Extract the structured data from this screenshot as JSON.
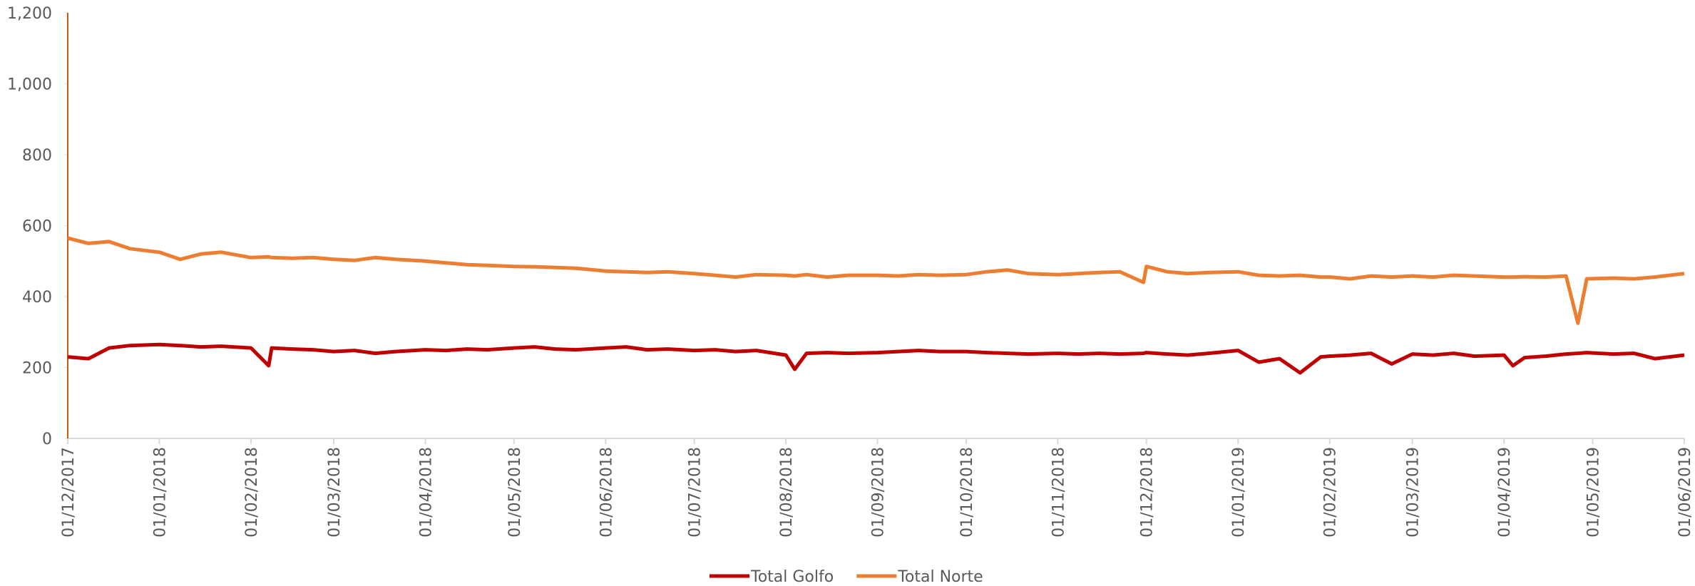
{
  "chart_data": {
    "type": "line",
    "x": [
      "01/12/2017",
      "08/12/2017",
      "15/12/2017",
      "22/12/2017",
      "01/01/2018",
      "08/01/2018",
      "15/01/2018",
      "22/01/2018",
      "01/02/2018",
      "07/02/2018",
      "08/02/2018",
      "15/02/2018",
      "22/02/2018",
      "01/03/2018",
      "08/03/2018",
      "15/03/2018",
      "22/03/2018",
      "01/04/2018",
      "08/04/2018",
      "15/04/2018",
      "22/04/2018",
      "01/05/2018",
      "08/05/2018",
      "15/05/2018",
      "22/05/2018",
      "01/06/2018",
      "08/06/2018",
      "15/06/2018",
      "22/06/2018",
      "01/07/2018",
      "08/07/2018",
      "15/07/2018",
      "22/07/2018",
      "01/08/2018",
      "04/08/2018",
      "08/08/2018",
      "15/08/2018",
      "22/08/2018",
      "01/09/2018",
      "08/09/2018",
      "15/09/2018",
      "22/09/2018",
      "01/10/2018",
      "08/10/2018",
      "15/10/2018",
      "22/10/2018",
      "01/11/2018",
      "08/11/2018",
      "15/11/2018",
      "22/11/2018",
      "30/11/2018",
      "01/12/2018",
      "08/12/2018",
      "15/12/2018",
      "22/12/2018",
      "01/01/2019",
      "08/01/2019",
      "15/01/2019",
      "22/01/2019",
      "29/01/2019",
      "01/02/2019",
      "08/02/2019",
      "15/02/2019",
      "22/02/2019",
      "01/03/2019",
      "08/03/2019",
      "15/03/2019",
      "22/03/2019",
      "01/04/2019",
      "04/04/2019",
      "08/04/2019",
      "15/04/2019",
      "22/04/2019",
      "26/04/2019",
      "29/04/2019",
      "08/05/2019",
      "15/05/2019",
      "22/05/2019",
      "01/06/2019"
    ],
    "series": [
      {
        "name": "Total Golfo",
        "color": "#c00000",
        "values": [
          230,
          225,
          255,
          262,
          265,
          262,
          258,
          260,
          255,
          205,
          255,
          252,
          250,
          245,
          248,
          240,
          245,
          250,
          248,
          252,
          250,
          255,
          258,
          252,
          250,
          255,
          258,
          250,
          252,
          248,
          250,
          245,
          248,
          235,
          195,
          240,
          242,
          240,
          242,
          245,
          248,
          245,
          245,
          242,
          240,
          238,
          240,
          238,
          240,
          238,
          240,
          242,
          238,
          235,
          240,
          248,
          215,
          225,
          185,
          230,
          232,
          235,
          240,
          210,
          238,
          235,
          240,
          232,
          235,
          205,
          228,
          232,
          238,
          240,
          242,
          238,
          240,
          225,
          235
        ]
      },
      {
        "name": "Total Norte",
        "color": "#ed7d31",
        "values": [
          565,
          550,
          555,
          535,
          525,
          505,
          520,
          525,
          510,
          512,
          510,
          508,
          510,
          505,
          502,
          510,
          505,
          500,
          495,
          490,
          488,
          485,
          484,
          482,
          480,
          472,
          470,
          468,
          470,
          465,
          460,
          455,
          462,
          460,
          458,
          462,
          455,
          460,
          460,
          458,
          462,
          460,
          462,
          470,
          475,
          465,
          462,
          465,
          468,
          470,
          440,
          485,
          470,
          465,
          468,
          470,
          460,
          458,
          460,
          455,
          455,
          450,
          458,
          455,
          458,
          455,
          460,
          458,
          455,
          455,
          456,
          455,
          458,
          325,
          450,
          452,
          450,
          455,
          465
        ]
      }
    ],
    "xlim": [
      "01/12/2017",
      "01/06/2019"
    ],
    "xticks": [
      "01/12/2017",
      "01/01/2018",
      "01/02/2018",
      "01/03/2018",
      "01/04/2018",
      "01/05/2018",
      "01/06/2018",
      "01/07/2018",
      "01/08/2018",
      "01/09/2018",
      "01/10/2018",
      "01/11/2018",
      "01/12/2018",
      "01/01/2019",
      "01/02/2019",
      "01/03/2019",
      "01/04/2019",
      "01/05/2019",
      "01/06/2019"
    ],
    "ylim": [
      0,
      1200
    ],
    "yticks": [
      0,
      200,
      400,
      600,
      800,
      {
        "value": 1000,
        "label": "1,000"
      },
      {
        "value": 1200,
        "label": "1,200"
      }
    ],
    "legend": "bottom"
  }
}
